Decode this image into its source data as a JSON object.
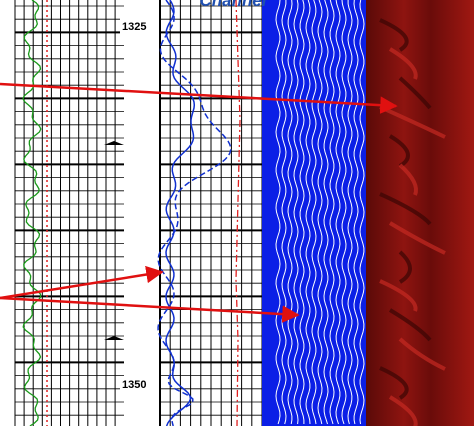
{
  "header": {
    "title": "Channel"
  },
  "depth_labels": [
    1325,
    1350
  ]
}
